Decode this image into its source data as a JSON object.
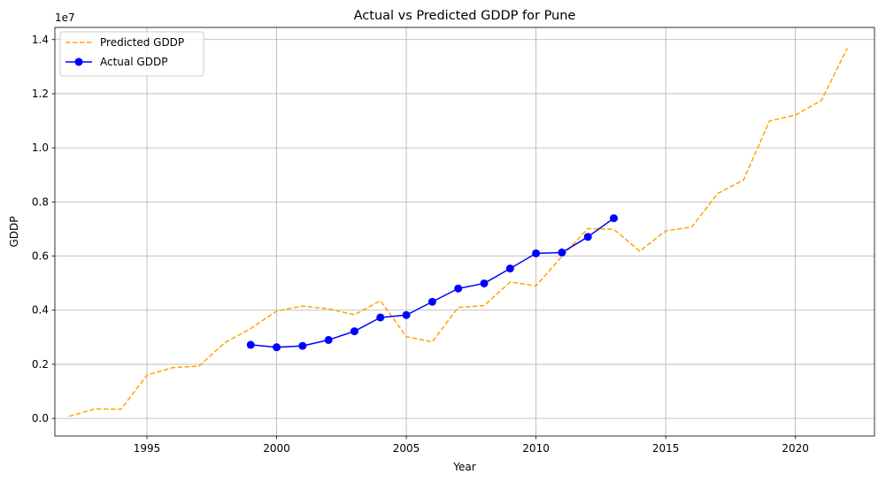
{
  "chart_data": {
    "type": "line",
    "title": "Actual vs Predicted GDDP for Pune",
    "xlabel": "Year",
    "ylabel": "GDDP",
    "y_offset_label": "1e7",
    "xlim": [
      1991.45,
      2023.05
    ],
    "ylim": [
      -650000,
      14450000
    ],
    "x_ticks": [
      1995,
      2000,
      2005,
      2010,
      2015,
      2020
    ],
    "x_tick_labels": [
      "1995",
      "2000",
      "2005",
      "2010",
      "2015",
      "2020"
    ],
    "y_ticks": [
      0,
      2000000,
      4000000,
      6000000,
      8000000,
      10000000,
      12000000,
      14000000
    ],
    "y_tick_labels": [
      "0.0",
      "0.2",
      "0.4",
      "0.6",
      "0.8",
      "1.0",
      "1.2",
      "1.4"
    ],
    "grid": true,
    "legend_position": "upper-left",
    "series": [
      {
        "name": "Predicted GDDP",
        "color": "#ffa500",
        "style": "dashed",
        "marker": "none",
        "x": [
          1992,
          1993,
          1994,
          1995,
          1996,
          1997,
          1998,
          1999,
          2000,
          2001,
          2002,
          2003,
          2004,
          2005,
          2006,
          2007,
          2008,
          2009,
          2010,
          2011,
          2012,
          2013,
          2014,
          2015,
          2016,
          2017,
          2018,
          2019,
          2020,
          2021,
          2022
        ],
        "y": [
          80000,
          350000,
          340000,
          1600000,
          1880000,
          1930000,
          2800000,
          3320000,
          3970000,
          4150000,
          4050000,
          3830000,
          4350000,
          3020000,
          2830000,
          4100000,
          4170000,
          5040000,
          4900000,
          5990000,
          7020000,
          6990000,
          6180000,
          6930000,
          7070000,
          8310000,
          8810000,
          10990000,
          11210000,
          11750000,
          13680000
        ]
      },
      {
        "name": "Actual GDDP",
        "color": "#0000ff",
        "style": "solid",
        "marker": "circle",
        "x": [
          1999,
          2000,
          2001,
          2002,
          2003,
          2004,
          2005,
          2006,
          2007,
          2008,
          2009,
          2010,
          2011,
          2012,
          2013
        ],
        "y": [
          2720000,
          2630000,
          2680000,
          2900000,
          3220000,
          3730000,
          3820000,
          4310000,
          4800000,
          4990000,
          5540000,
          6100000,
          6130000,
          6710000,
          7400000
        ]
      }
    ]
  }
}
